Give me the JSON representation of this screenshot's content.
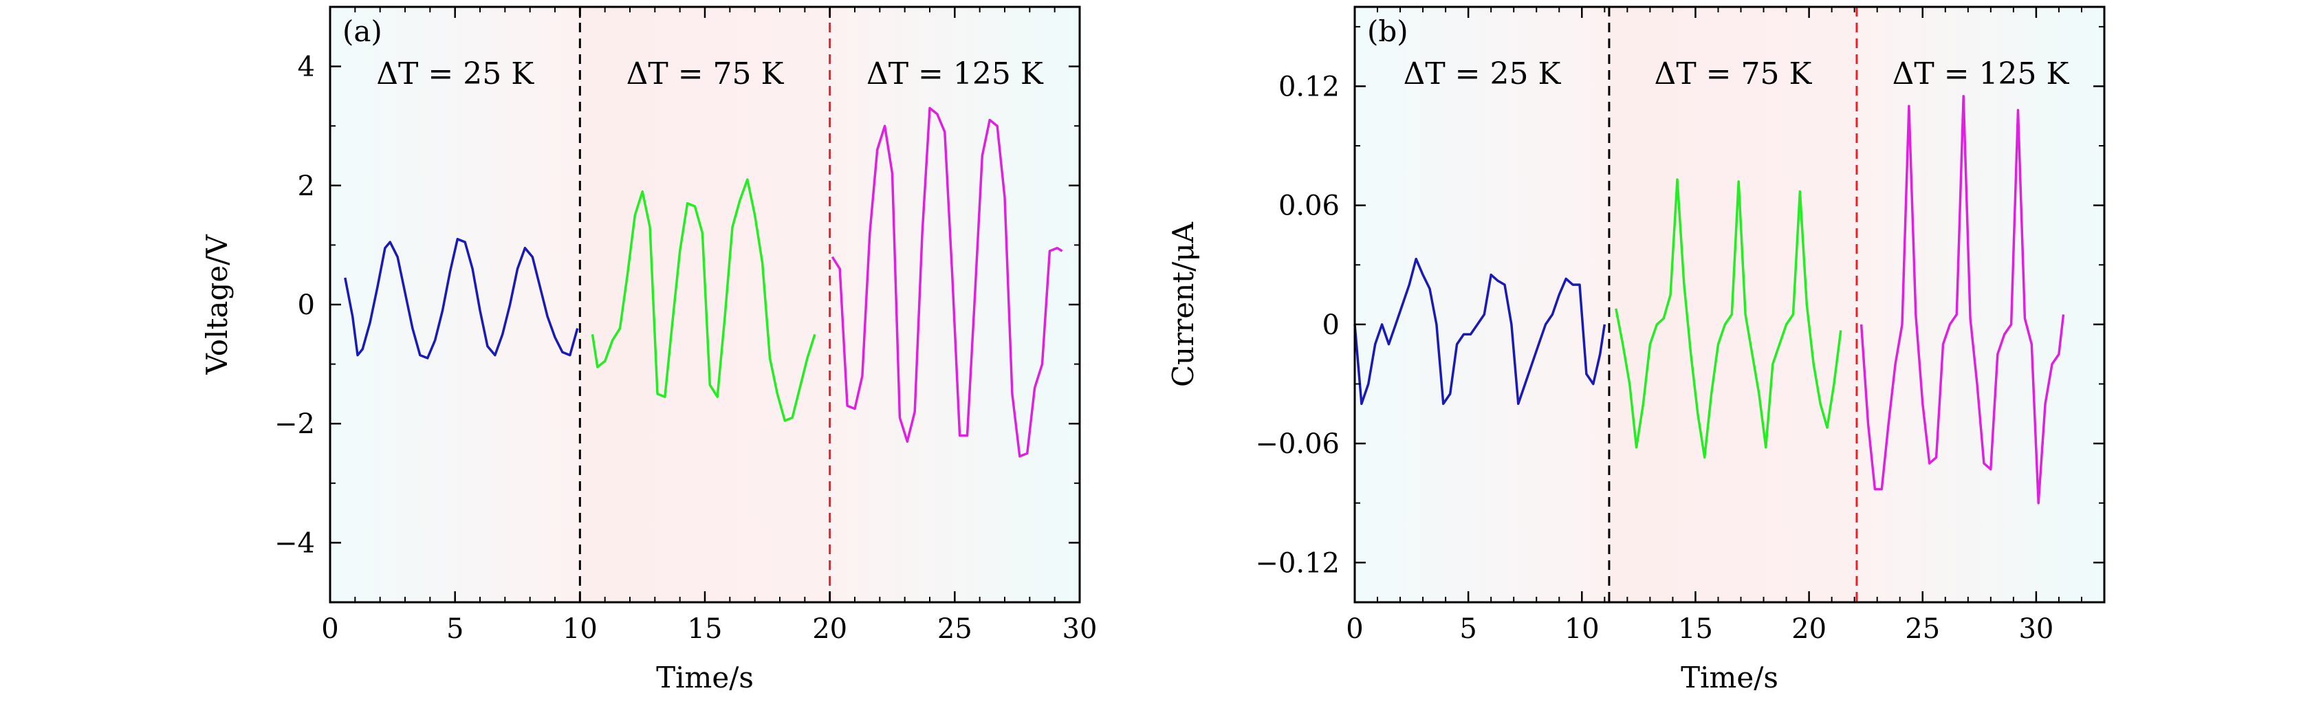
{
  "chart_data": [
    {
      "type": "line",
      "panel_label": "(a)",
      "xlabel": "Time/s",
      "ylabel": "Voltage/V",
      "xlim": [
        0,
        30
      ],
      "ylim": [
        -5,
        5
      ],
      "xticks": [
        0,
        5,
        10,
        15,
        20,
        25,
        30
      ],
      "yticks": [
        -4,
        -2,
        0,
        2,
        4
      ],
      "ytick_labels": [
        "−4",
        "−2",
        "0",
        "2",
        "4"
      ],
      "separators": [
        {
          "x": 10,
          "color": "#000000"
        },
        {
          "x": 20,
          "color": "#e8202a"
        }
      ],
      "regions": [
        {
          "from": 0,
          "to": 10,
          "label": "ΔT = 25 K",
          "bg": [
            "#f1fbfc",
            "#fdf2f2"
          ]
        },
        {
          "from": 10,
          "to": 20,
          "label": "ΔT = 75 K",
          "bg": [
            "#fdeeee",
            "#fdf0f0"
          ]
        },
        {
          "from": 20,
          "to": 30,
          "label": "ΔT = 125 K",
          "bg": [
            "#fdf2f2",
            "#effbfb"
          ]
        }
      ],
      "series": [
        {
          "color": "#1a1ab8",
          "x": [
            0.6,
            0.9,
            1.1,
            1.3,
            1.6,
            1.9,
            2.2,
            2.4,
            2.7,
            3.0,
            3.3,
            3.6,
            3.9,
            4.2,
            4.5,
            4.8,
            5.1,
            5.4,
            5.7,
            6.0,
            6.3,
            6.6,
            6.9,
            7.2,
            7.5,
            7.8,
            8.1,
            8.4,
            8.7,
            9.0,
            9.3,
            9.6,
            9.9
          ],
          "y": [
            0.45,
            -0.2,
            -0.85,
            -0.75,
            -0.3,
            0.3,
            0.95,
            1.05,
            0.8,
            0.2,
            -0.4,
            -0.85,
            -0.9,
            -0.6,
            -0.1,
            0.55,
            1.1,
            1.05,
            0.6,
            -0.1,
            -0.7,
            -0.85,
            -0.5,
            0.0,
            0.6,
            0.95,
            0.8,
            0.3,
            -0.2,
            -0.55,
            -0.8,
            -0.85,
            -0.4
          ]
        },
        {
          "color": "#22ee22",
          "x": [
            10.5,
            10.7,
            11.0,
            11.3,
            11.6,
            11.9,
            12.2,
            12.5,
            12.8,
            13.1,
            13.4,
            13.7,
            14.0,
            14.3,
            14.6,
            14.9,
            15.2,
            15.5,
            15.8,
            16.1,
            16.4,
            16.7,
            17.0,
            17.3,
            17.6,
            17.9,
            18.2,
            18.5,
            18.8,
            19.1,
            19.4
          ],
          "y": [
            -0.5,
            -1.05,
            -0.95,
            -0.6,
            -0.4,
            0.5,
            1.5,
            1.9,
            1.3,
            -1.5,
            -1.55,
            -0.3,
            0.9,
            1.7,
            1.65,
            1.2,
            -1.35,
            -1.55,
            -0.2,
            1.3,
            1.75,
            2.1,
            1.5,
            0.7,
            -0.9,
            -1.5,
            -1.95,
            -1.9,
            -1.4,
            -0.9,
            -0.5
          ]
        },
        {
          "color": "#e020e0",
          "x": [
            20.1,
            20.4,
            20.7,
            21.0,
            21.3,
            21.6,
            21.9,
            22.2,
            22.5,
            22.8,
            23.1,
            23.4,
            23.7,
            24.0,
            24.3,
            24.6,
            24.9,
            25.2,
            25.5,
            25.8,
            26.1,
            26.4,
            26.7,
            27.0,
            27.3,
            27.6,
            27.9,
            28.2,
            28.5,
            28.8,
            29.1,
            29.3
          ],
          "y": [
            0.8,
            0.6,
            -1.7,
            -1.75,
            -1.2,
            1.2,
            2.6,
            3.0,
            2.2,
            -1.9,
            -2.3,
            -1.8,
            1.2,
            3.3,
            3.2,
            2.9,
            0.5,
            -2.2,
            -2.2,
            0.1,
            2.5,
            3.1,
            3.0,
            1.8,
            -1.5,
            -2.55,
            -2.5,
            -1.4,
            -1.0,
            0.9,
            0.95,
            0.9
          ]
        }
      ]
    },
    {
      "type": "line",
      "panel_label": "(b)",
      "xlabel": "Time/s",
      "ylabel": "Current/μA",
      "xlim": [
        0,
        33
      ],
      "ylim": [
        -0.14,
        0.16
      ],
      "xticks": [
        0,
        5,
        10,
        15,
        20,
        25,
        30
      ],
      "yticks": [
        -0.12,
        -0.06,
        0,
        0.06,
        0.12
      ],
      "ytick_labels": [
        "−0.12",
        "−0.06",
        "0",
        "0.06",
        "0.12"
      ],
      "separators": [
        {
          "x": 11.2,
          "color": "#000000"
        },
        {
          "x": 22.1,
          "color": "#e8202a"
        }
      ],
      "regions": [
        {
          "from": 0,
          "to": 11.2,
          "label": "ΔT = 25 K",
          "bg": [
            "#f1fbfc",
            "#fdf2f2"
          ]
        },
        {
          "from": 11.2,
          "to": 22.1,
          "label": "ΔT = 75 K",
          "bg": [
            "#fdeeee",
            "#fdf0f0"
          ]
        },
        {
          "from": 22.1,
          "to": 33,
          "label": "ΔT = 125 K",
          "bg": [
            "#fdf2f2",
            "#effbfb"
          ]
        }
      ],
      "series": [
        {
          "color": "#1a1ab8",
          "x": [
            0.0,
            0.3,
            0.6,
            0.9,
            1.2,
            1.5,
            1.8,
            2.1,
            2.4,
            2.7,
            3.0,
            3.3,
            3.6,
            3.9,
            4.2,
            4.5,
            4.8,
            5.1,
            5.4,
            5.7,
            6.0,
            6.3,
            6.6,
            6.9,
            7.2,
            7.5,
            7.8,
            8.1,
            8.4,
            8.7,
            9.0,
            9.3,
            9.6,
            9.9,
            10.2,
            10.5,
            10.8,
            11.0
          ],
          "y": [
            0.0,
            -0.04,
            -0.03,
            -0.01,
            0.0,
            -0.01,
            0.0,
            0.01,
            0.02,
            0.033,
            0.025,
            0.018,
            0.0,
            -0.04,
            -0.035,
            -0.01,
            -0.005,
            -0.005,
            0.0,
            0.005,
            0.025,
            0.022,
            0.02,
            0.0,
            -0.04,
            -0.03,
            -0.02,
            -0.01,
            0.0,
            0.005,
            0.015,
            0.023,
            0.02,
            0.02,
            -0.025,
            -0.03,
            -0.015,
            0.0
          ]
        },
        {
          "color": "#22ee22",
          "x": [
            11.5,
            11.8,
            12.1,
            12.4,
            12.7,
            13.0,
            13.3,
            13.6,
            13.9,
            14.2,
            14.5,
            14.8,
            15.1,
            15.4,
            15.7,
            16.0,
            16.3,
            16.6,
            16.9,
            17.2,
            17.5,
            17.8,
            18.1,
            18.4,
            18.7,
            19.0,
            19.3,
            19.6,
            19.9,
            20.2,
            20.5,
            20.8,
            21.1,
            21.4
          ],
          "y": [
            0.008,
            -0.01,
            -0.03,
            -0.062,
            -0.04,
            -0.01,
            0.0,
            0.003,
            0.015,
            0.073,
            0.02,
            -0.015,
            -0.045,
            -0.067,
            -0.035,
            -0.01,
            0.0,
            0.005,
            0.072,
            0.005,
            -0.015,
            -0.035,
            -0.062,
            -0.02,
            -0.01,
            0.0,
            0.005,
            0.067,
            0.01,
            -0.02,
            -0.04,
            -0.052,
            -0.03,
            -0.003
          ]
        },
        {
          "color": "#e020e0",
          "x": [
            22.3,
            22.6,
            22.9,
            23.2,
            23.5,
            23.8,
            24.1,
            24.4,
            24.7,
            25.0,
            25.3,
            25.6,
            25.9,
            26.2,
            26.5,
            26.8,
            27.1,
            27.4,
            27.7,
            28.0,
            28.3,
            28.6,
            28.9,
            29.2,
            29.5,
            29.8,
            30.1,
            30.4,
            30.7,
            31.0,
            31.2
          ],
          "y": [
            0.0,
            -0.05,
            -0.083,
            -0.083,
            -0.05,
            -0.02,
            0.0,
            0.11,
            0.005,
            -0.04,
            -0.07,
            -0.067,
            -0.01,
            0.0,
            0.005,
            0.115,
            0.003,
            -0.03,
            -0.07,
            -0.073,
            -0.015,
            -0.005,
            0.0,
            0.108,
            0.003,
            -0.01,
            -0.09,
            -0.04,
            -0.02,
            -0.015,
            0.005
          ]
        }
      ]
    }
  ]
}
